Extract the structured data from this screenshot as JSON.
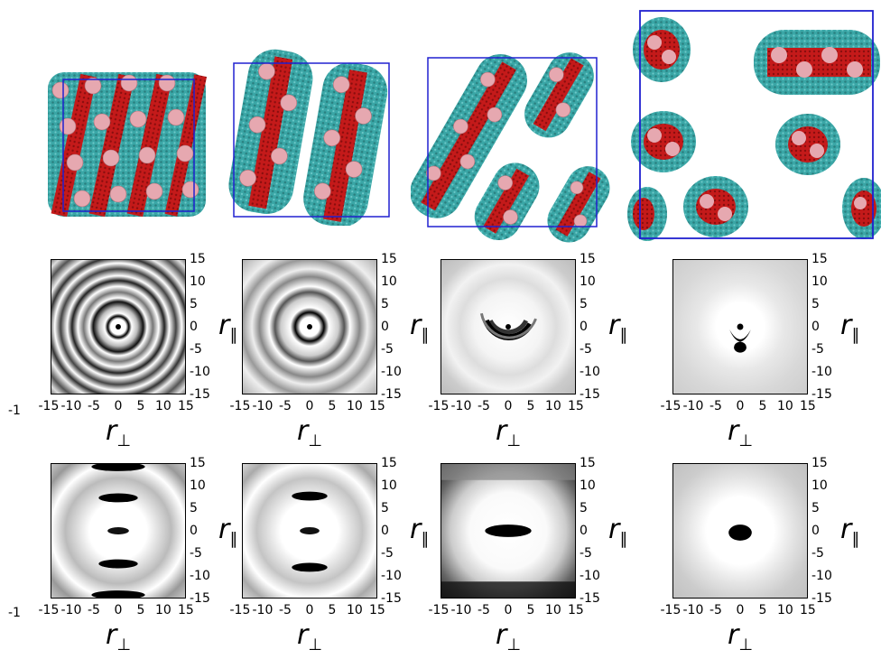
{
  "axes": {
    "x_ticks": [
      "-15",
      "-10",
      "-5",
      "0",
      "5",
      "10",
      "15"
    ],
    "y_ticks": [
      "15",
      "10",
      "5",
      "0",
      "-5",
      "-10",
      "-15"
    ],
    "xlabel_main": "r",
    "xlabel_sub": "⊥",
    "ylabel_main": "r",
    "ylabel_sub": "∥",
    "corner_label": "-1"
  },
  "colors": {
    "box": "#2020d0",
    "core_red": "#c81818",
    "core_pink": "#e8a0a8",
    "shell_teal": "#30a0a0"
  }
}
